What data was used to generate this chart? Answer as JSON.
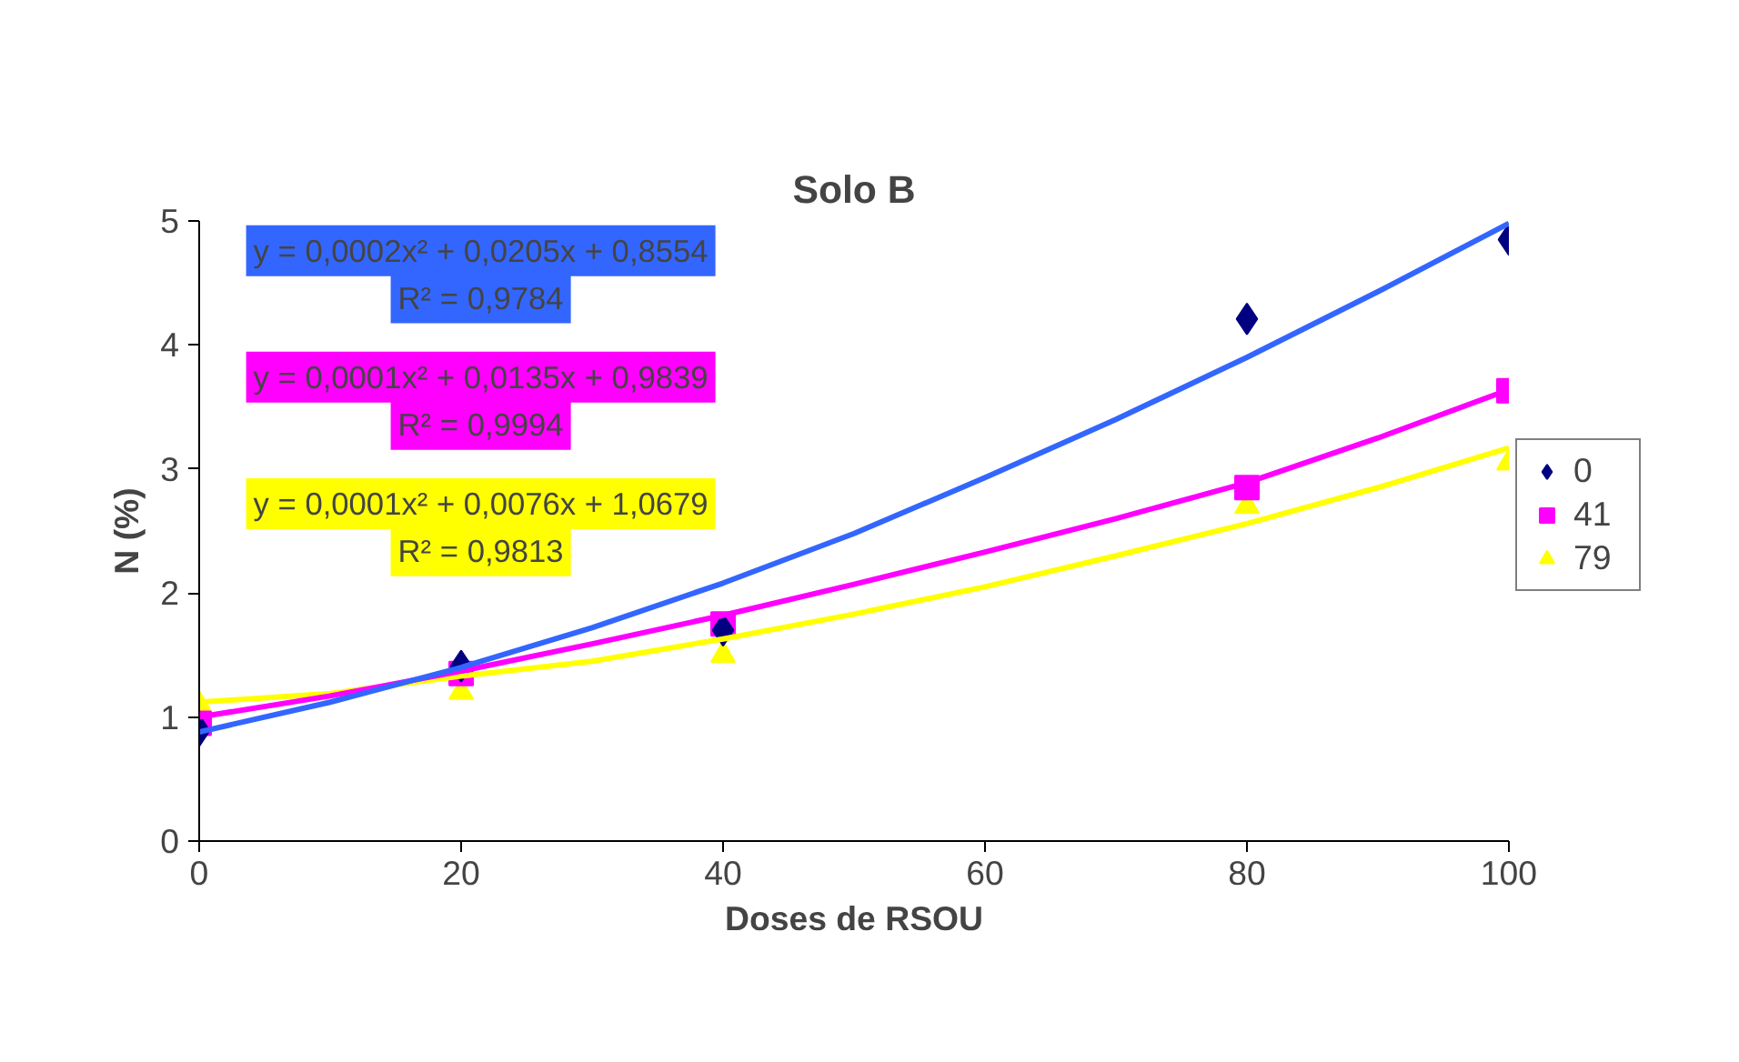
{
  "chart_data": {
    "type": "scatter",
    "title": "Solo B",
    "xlabel": "Doses de RSOU",
    "ylabel": "N (%)",
    "x": [
      0,
      20,
      40,
      80,
      100
    ],
    "series": [
      {
        "name": "0",
        "color": "#000080",
        "marker": "diamond",
        "values": [
          0.89,
          1.41,
          1.7,
          4.21,
          4.85
        ]
      },
      {
        "name": "41",
        "color": "#ff00ff",
        "marker": "square",
        "values": [
          0.95,
          1.35,
          1.75,
          2.85,
          3.63
        ]
      },
      {
        "name": "79",
        "color": "#ffff00",
        "marker": "triangle",
        "values": [
          1.1,
          1.2,
          1.5,
          2.7,
          3.05
        ]
      },
      {
        "type": "line",
        "color": "#3366ff",
        "x": [
          0,
          10,
          20,
          30,
          40,
          50,
          60,
          70,
          80,
          90,
          100
        ],
        "values": [
          0.88,
          1.12,
          1.4,
          1.72,
          2.08,
          2.48,
          2.93,
          3.4,
          3.9,
          4.43,
          4.98
        ]
      },
      {
        "type": "line",
        "color": "#ff00ff",
        "x": [
          0,
          10,
          20,
          30,
          40,
          50,
          60,
          70,
          80,
          90,
          100
        ],
        "values": [
          1.0,
          1.17,
          1.37,
          1.59,
          1.82,
          2.07,
          2.33,
          2.6,
          2.89,
          3.25,
          3.64
        ]
      },
      {
        "type": "line",
        "color": "#ffff00",
        "x": [
          0,
          10,
          20,
          30,
          40,
          50,
          60,
          70,
          80,
          90,
          100
        ],
        "values": [
          1.12,
          1.19,
          1.33,
          1.45,
          1.63,
          1.83,
          2.05,
          2.3,
          2.56,
          2.85,
          3.17
        ]
      }
    ],
    "annotations": [
      "y = 0,0002x² + 0,0205x + 0,8554\nR² = 0,9784",
      "y = 0,0001x² + 0,0135x + 0,9839\nR² = 0,9994",
      "y = 0,0001x² + 0,0076x + 1,0679\nR² = 0,9813"
    ],
    "xlim": [
      0,
      100
    ],
    "ylim": [
      0,
      5
    ],
    "xticks": [
      0,
      20,
      40,
      60,
      80,
      100
    ],
    "yticks": [
      0,
      1,
      2,
      3,
      4,
      5
    ],
    "grid": false,
    "legend": "right"
  }
}
